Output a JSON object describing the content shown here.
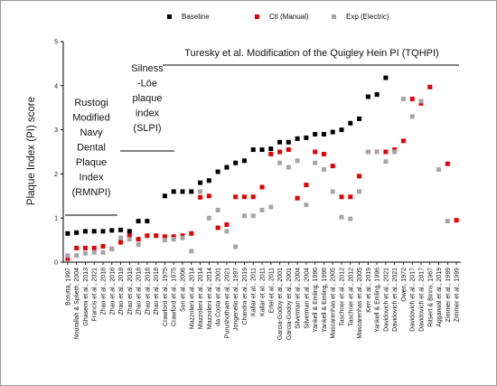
{
  "chart_data": {
    "type": "scatter",
    "ylabel": "Plaque Index (PI) score",
    "xlabel": "",
    "ylim": [
      0,
      5
    ],
    "yticks": [
      0,
      1,
      2,
      3,
      4,
      5
    ],
    "grid": false,
    "legend_position": "top",
    "categories": [
      "Borutta, 1997",
      "Nourallah & Splieth, 2004",
      "Ghasemi et al., 2013",
      "Francis et al., 2021",
      "Zhao et al., 2018",
      "Zhao et al., 2018",
      "Zhao et al., 2018",
      "Zhao et al., 2018",
      "Zhao et al., 2018",
      "Zhao et al., 2018",
      "Zhao et al., 2018",
      "Crawford et al., 1975",
      "Crawford et al., 1975",
      "Sun et al., 2006",
      "Mazzoleni et al., 2014",
      "Mazzoleni et al., 2014",
      "Mazzoleni et al., 2014",
      "da Costa et al., 2001",
      "Purushotham et al., 2021",
      "Jongenelis et al., 1997",
      "Chandra et al., 2019",
      "Kallar et al., 2011",
      "Kallar et al., 2011",
      "Ertel et al., 2011",
      "Garcia-Godoy et al., 2001",
      "Garcia-Godoy et al., 2001",
      "Silverman et al., 2004",
      "Silverman et al., 2004",
      "Yankell & Emling, 1996",
      "Yankell & Emling, 1996",
      "Mascarenhas et al., 2005",
      "Taschner et al., 2012",
      "Taschner et al., 2012",
      "Mascarenhas et al., 2005",
      "Kerr et al., 2019",
      "Yankell & Emling, 1996",
      "Davidovich et al., 2021",
      "Davidovich et al., 2021",
      "Owen, 1972",
      "Davidovich et al., 2017",
      "Davidovich et al., 2017",
      "Ritsert & Binns, 1967",
      "Aggarwal et al., 2019",
      "Zimmer et al., 1999",
      "Zimmer et al., 1999"
    ],
    "series": [
      {
        "name": "Baseline",
        "color": "#000000",
        "marker": "square",
        "values": [
          0.65,
          0.67,
          0.7,
          0.7,
          0.7,
          0.72,
          0.73,
          0.7,
          0.93,
          0.93,
          null,
          1.5,
          1.6,
          1.6,
          1.6,
          1.8,
          1.85,
          2.05,
          2.15,
          2.25,
          2.3,
          2.55,
          2.55,
          2.57,
          2.72,
          2.72,
          2.8,
          2.82,
          2.9,
          2.9,
          2.95,
          3.0,
          3.15,
          3.25,
          3.75,
          3.8,
          4.18,
          null,
          null,
          null,
          null,
          null,
          null,
          null,
          null
        ]
      },
      {
        "name": "Ctl  (Manual)",
        "color": "#e60000",
        "marker": "square",
        "values": [
          0.08,
          0.32,
          0.32,
          0.32,
          0.36,
          0.3,
          0.45,
          0.6,
          0.52,
          0.6,
          0.6,
          0.58,
          0.58,
          0.6,
          0.65,
          1.47,
          1.5,
          0.78,
          0.85,
          1.48,
          1.48,
          1.48,
          1.7,
          2.45,
          2.5,
          2.55,
          1.45,
          1.75,
          2.5,
          2.45,
          2.18,
          1.48,
          1.48,
          1.95,
          2.5,
          2.5,
          2.5,
          2.55,
          2.75,
          3.7,
          3.6,
          3.97,
          null,
          2.23,
          0.95
        ]
      },
      {
        "name": "Exp (Electric)",
        "color": "#a6a6a6",
        "marker": "square",
        "values": [
          0.15,
          0.15,
          0.2,
          0.22,
          0.22,
          0.3,
          0.55,
          0.52,
          0.4,
          null,
          null,
          0.5,
          0.52,
          0.55,
          0.25,
          1.6,
          1.0,
          1.18,
          0.7,
          0.35,
          1.05,
          1.05,
          1.18,
          1.25,
          2.25,
          2.15,
          2.3,
          1.3,
          2.25,
          2.1,
          1.6,
          1.02,
          0.98,
          1.6,
          2.5,
          2.5,
          2.28,
          2.5,
          3.7,
          3.3,
          3.65,
          null,
          2.1,
          0.93,
          null
        ]
      }
    ],
    "annotations": [
      {
        "id": "rmnpi",
        "text": [
          "Rustogi",
          "Modified",
          "Navy",
          "Dental",
          "Plaque",
          "Index",
          "(RMNPI)"
        ]
      },
      {
        "id": "slpi",
        "text": [
          "Silness",
          "-Löe",
          "plaque",
          "index",
          "(SLPI)"
        ]
      },
      {
        "id": "tqhpi",
        "text": [
          "Turesky et al. Modification of the Quigley Hein PI (TQHPI)"
        ]
      }
    ]
  }
}
